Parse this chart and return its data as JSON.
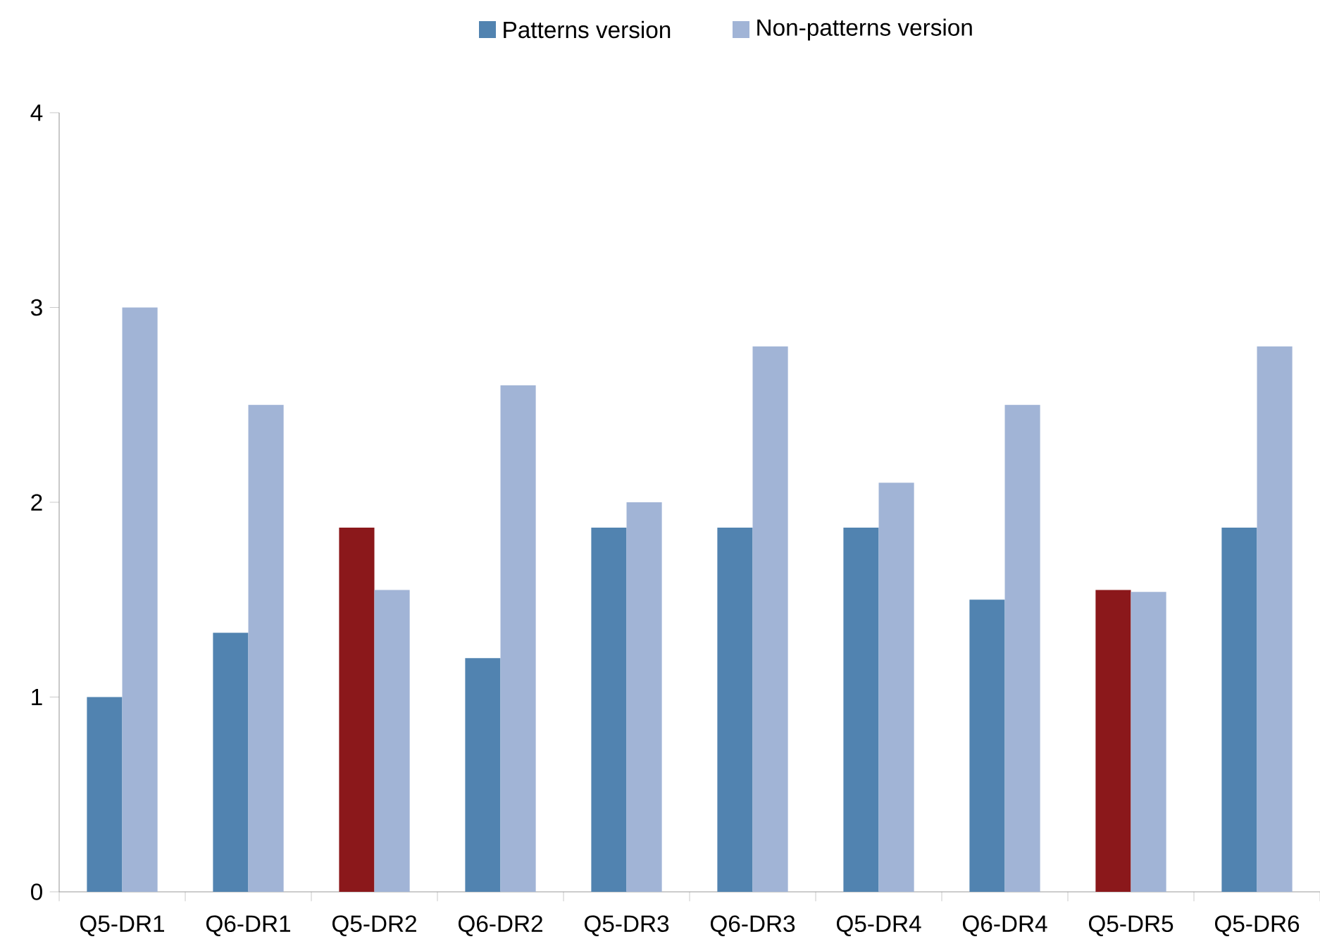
{
  "chart_data": {
    "type": "bar",
    "categories": [
      "Q5-DR1",
      "Q6-DR1",
      "Q5-DR2",
      "Q6-DR2",
      "Q5-DR3",
      "Q6-DR3",
      "Q5-DR4",
      "Q6-DR4",
      "Q5-DR5",
      "Q5-DR6"
    ],
    "series": [
      {
        "name": "Patterns version",
        "color": "#5183b0",
        "colors": [
          "#5183b0",
          "#5183b0",
          "#8b181b",
          "#5183b0",
          "#5183b0",
          "#5183b0",
          "#5183b0",
          "#5183b0",
          "#8b181b",
          "#5183b0"
        ],
        "values": [
          1.0,
          1.33,
          1.87,
          1.2,
          1.87,
          1.87,
          1.87,
          1.5,
          1.55,
          1.87
        ]
      },
      {
        "name": "Non-patterns version",
        "color": "#a1b4d6",
        "values": [
          3.0,
          2.5,
          1.55,
          2.6,
          2.0,
          2.8,
          2.1,
          2.5,
          1.54,
          2.8
        ]
      }
    ],
    "ylim": [
      0,
      4
    ],
    "yticks": [
      0,
      1,
      2,
      3,
      4
    ],
    "grid": false,
    "legend": "top"
  }
}
